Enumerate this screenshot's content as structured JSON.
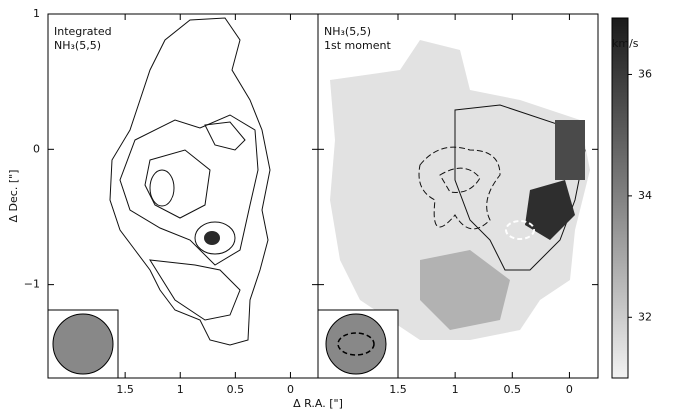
{
  "x_axis_label": "Δ R.A. [\"]",
  "y_axis_label": "Δ Dec. [\"]",
  "panels": [
    {
      "label": [
        "Integrated",
        "NH₃(5,5)"
      ]
    },
    {
      "label": [
        "NH₃(5,5)",
        "1st moment"
      ]
    }
  ],
  "xlim": [
    2.2,
    -0.25
  ],
  "xticks": [
    1.5,
    1,
    0.5,
    0
  ],
  "ylim": [
    -1.69,
    1
  ],
  "yticks": [
    {
      "value": -1,
      "label": "−1"
    },
    0,
    1
  ],
  "colorbar": {
    "label": "km/s",
    "lim": [
      31,
      36.93
    ],
    "ticks": [
      32,
      34,
      36
    ]
  }
}
